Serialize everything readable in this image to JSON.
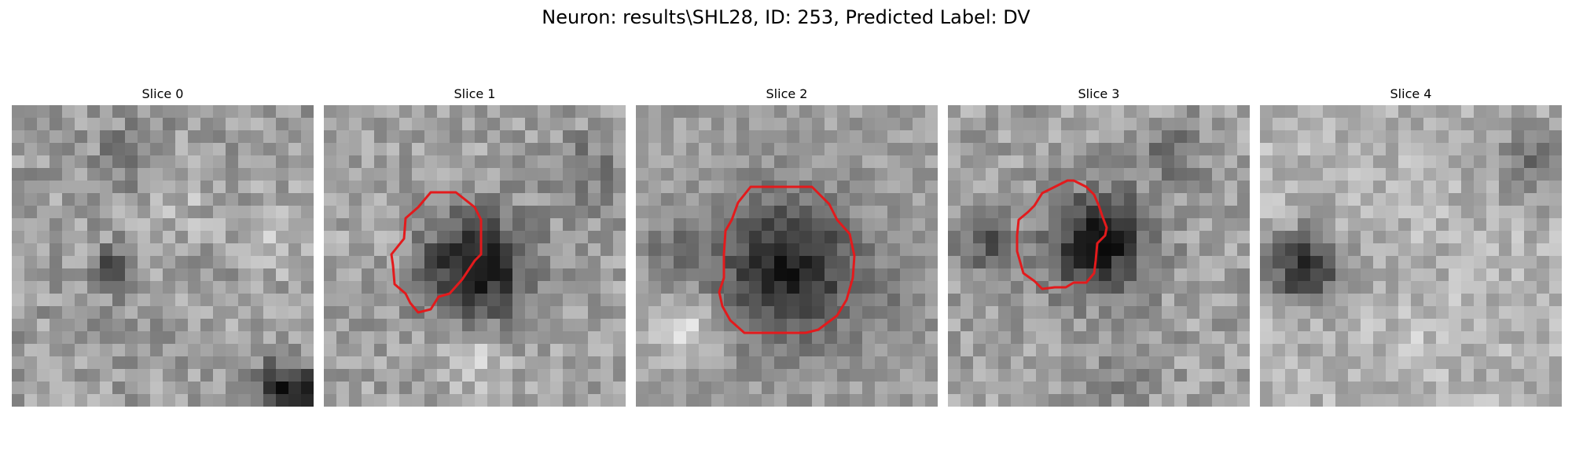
{
  "figure": {
    "title": "Neuron: results\\SHL28, ID: 253, Predicted Label: DV"
  },
  "slices": [
    {
      "title": "Slice 0",
      "has_contour": false
    },
    {
      "title": "Slice 1",
      "has_contour": true
    },
    {
      "title": "Slice 2",
      "has_contour": true
    },
    {
      "title": "Slice 3",
      "has_contour": true
    },
    {
      "title": "Slice 4",
      "has_contour": false
    }
  ],
  "colors": {
    "contour": "#e31a1c",
    "background": "#ffffff"
  },
  "image_style": "grayscale pixel grid"
}
